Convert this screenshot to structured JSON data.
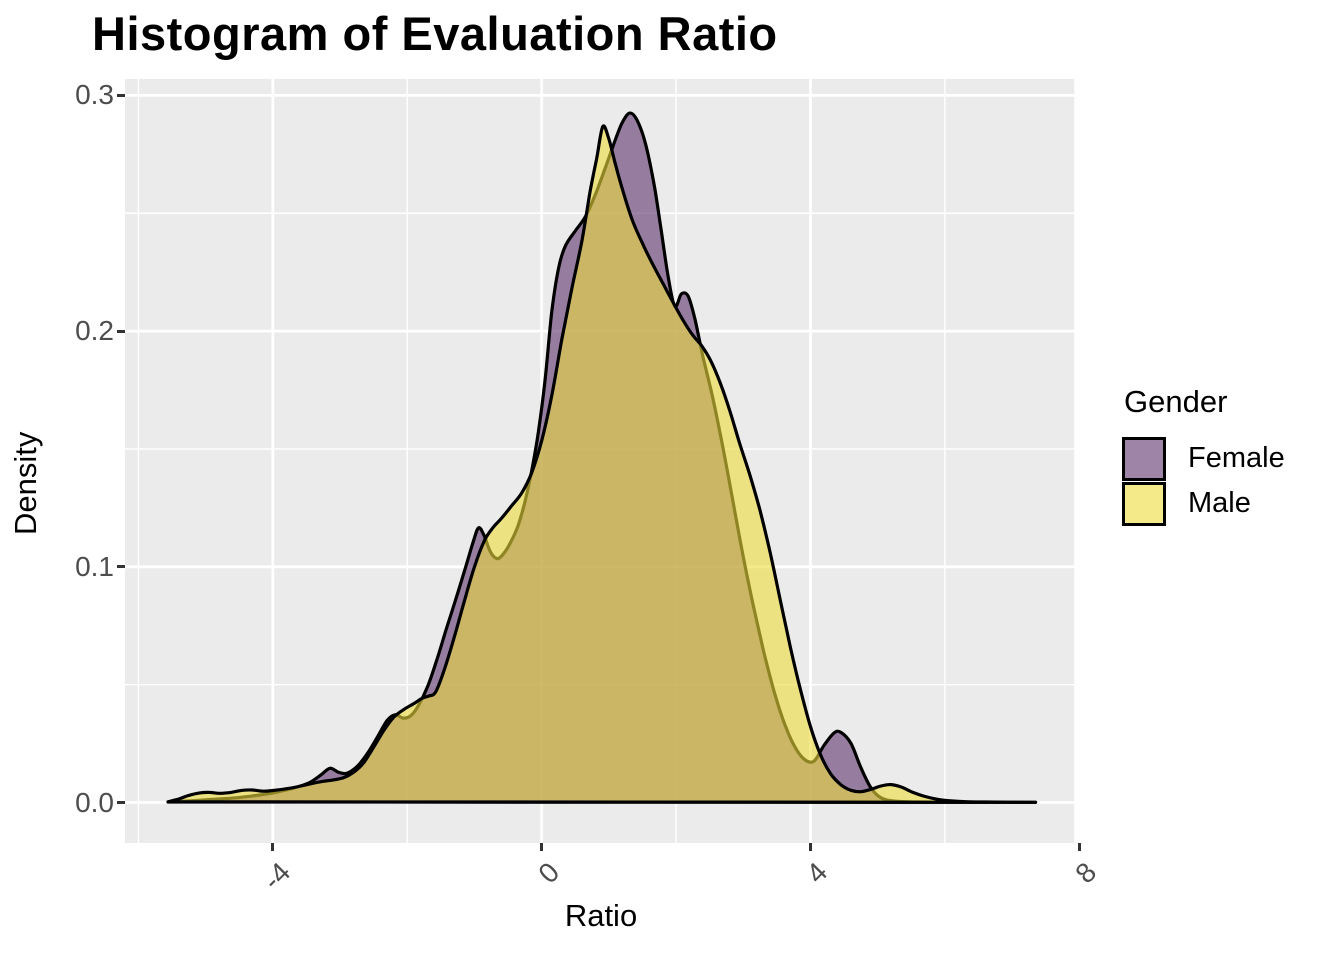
{
  "title": "Histogram of Evaluation Ratio",
  "x_axis": {
    "label": "Ratio",
    "ticks": [
      "-4",
      "0",
      "4",
      "8"
    ]
  },
  "y_axis": {
    "label": "Density",
    "ticks": [
      "0.0",
      "0.1",
      "0.2",
      "0.3"
    ]
  },
  "legend": {
    "title": "Gender",
    "entries": [
      {
        "label": "Female",
        "color": "#5D346E"
      },
      {
        "label": "Male",
        "color": "#ECDC3C"
      }
    ]
  },
  "chart_data": {
    "type": "area",
    "subtype": "overlaid-density-curves",
    "title": "Histogram of Evaluation Ratio",
    "xlabel": "Ratio",
    "ylabel": "Density",
    "x_ticks": [
      -4,
      0,
      4,
      8
    ],
    "y_ticks": [
      0.0,
      0.1,
      0.2,
      0.3
    ],
    "x_minor_ticks": [
      -6,
      -2,
      2,
      6
    ],
    "y_minor_ticks": [
      0.05,
      0.15,
      0.25
    ],
    "xlim": [
      -6.2,
      7.966
    ],
    "ylim": [
      -0.01718,
      0.30696
    ],
    "grid": true,
    "legend_position": "right",
    "panel_bg": "#EBEBEB",
    "grid_color": "#FFFFFF",
    "outline_color": "#000000",
    "outline_width": 3.2,
    "fill_alpha": 0.6,
    "series": [
      {
        "name": "Female",
        "color": "#5D346E",
        "points": [
          [
            -5.56,
            0.0002
          ],
          [
            -5.3,
            0.0006
          ],
          [
            -5.05,
            0.001
          ],
          [
            -4.8,
            0.0015
          ],
          [
            -4.55,
            0.002
          ],
          [
            -4.3,
            0.0028
          ],
          [
            -4.05,
            0.0038
          ],
          [
            -3.85,
            0.005
          ],
          [
            -3.65,
            0.0065
          ],
          [
            -3.45,
            0.0085
          ],
          [
            -3.28,
            0.0118
          ],
          [
            -3.15,
            0.0145
          ],
          [
            -3.02,
            0.0128
          ],
          [
            -2.9,
            0.0124
          ],
          [
            -2.75,
            0.0152
          ],
          [
            -2.6,
            0.0205
          ],
          [
            -2.45,
            0.0275
          ],
          [
            -2.3,
            0.0348
          ],
          [
            -2.18,
            0.0372
          ],
          [
            -2.06,
            0.0358
          ],
          [
            -1.95,
            0.0368
          ],
          [
            -1.84,
            0.0408
          ],
          [
            -1.7,
            0.049
          ],
          [
            -1.56,
            0.0605
          ],
          [
            -1.42,
            0.0735
          ],
          [
            -1.28,
            0.086
          ],
          [
            -1.14,
            0.099
          ],
          [
            -1.02,
            0.1105
          ],
          [
            -0.94,
            0.1165
          ],
          [
            -0.86,
            0.1135
          ],
          [
            -0.76,
            0.1062
          ],
          [
            -0.66,
            0.1035
          ],
          [
            -0.56,
            0.1058
          ],
          [
            -0.46,
            0.1105
          ],
          [
            -0.35,
            0.1175
          ],
          [
            -0.25,
            0.1275
          ],
          [
            -0.15,
            0.1405
          ],
          [
            -0.05,
            0.157
          ],
          [
            0.05,
            0.179
          ],
          [
            0.15,
            0.208
          ],
          [
            0.25,
            0.2265
          ],
          [
            0.35,
            0.236
          ],
          [
            0.5,
            0.2425
          ],
          [
            0.65,
            0.2485
          ],
          [
            0.8,
            0.258
          ],
          [
            0.95,
            0.2695
          ],
          [
            1.1,
            0.2815
          ],
          [
            1.2,
            0.2885
          ],
          [
            1.31,
            0.2925
          ],
          [
            1.42,
            0.2895
          ],
          [
            1.55,
            0.279
          ],
          [
            1.68,
            0.261
          ],
          [
            1.78,
            0.2425
          ],
          [
            1.88,
            0.2235
          ],
          [
            1.98,
            0.2105
          ],
          [
            2.08,
            0.2158
          ],
          [
            2.18,
            0.2148
          ],
          [
            2.28,
            0.2052
          ],
          [
            2.4,
            0.1892
          ],
          [
            2.55,
            0.1712
          ],
          [
            2.7,
            0.1502
          ],
          [
            2.85,
            0.1272
          ],
          [
            3.0,
            0.1042
          ],
          [
            3.15,
            0.0835
          ],
          [
            3.3,
            0.0645
          ],
          [
            3.45,
            0.048
          ],
          [
            3.6,
            0.0345
          ],
          [
            3.75,
            0.0245
          ],
          [
            3.9,
            0.0185
          ],
          [
            4.05,
            0.0175
          ],
          [
            4.2,
            0.0242
          ],
          [
            4.35,
            0.0295
          ],
          [
            4.45,
            0.0298
          ],
          [
            4.6,
            0.0252
          ],
          [
            4.75,
            0.0148
          ],
          [
            4.9,
            0.0062
          ],
          [
            5.05,
            0.002
          ],
          [
            5.25,
            0.0006
          ],
          [
            5.6,
            0.0002
          ],
          [
            6.2,
            0.0001
          ],
          [
            7.35,
            0.0001
          ]
        ]
      },
      {
        "name": "Male",
        "color": "#ECDC3C",
        "points": [
          [
            -5.56,
            0.0003
          ],
          [
            -5.4,
            0.0015
          ],
          [
            -5.25,
            0.003
          ],
          [
            -5.1,
            0.004
          ],
          [
            -4.95,
            0.0043
          ],
          [
            -4.8,
            0.0039
          ],
          [
            -4.62,
            0.0043
          ],
          [
            -4.45,
            0.0052
          ],
          [
            -4.3,
            0.0053
          ],
          [
            -4.15,
            0.0048
          ],
          [
            -4.0,
            0.0051
          ],
          [
            -3.85,
            0.0056
          ],
          [
            -3.7,
            0.0063
          ],
          [
            -3.55,
            0.0072
          ],
          [
            -3.4,
            0.0082
          ],
          [
            -3.25,
            0.009
          ],
          [
            -3.1,
            0.0096
          ],
          [
            -2.95,
            0.0105
          ],
          [
            -2.8,
            0.0128
          ],
          [
            -2.65,
            0.0168
          ],
          [
            -2.5,
            0.0235
          ],
          [
            -2.35,
            0.0305
          ],
          [
            -2.2,
            0.0362
          ],
          [
            -2.05,
            0.0395
          ],
          [
            -1.9,
            0.042
          ],
          [
            -1.78,
            0.0442
          ],
          [
            -1.68,
            0.0452
          ],
          [
            -1.58,
            0.0468
          ],
          [
            -1.45,
            0.0562
          ],
          [
            -1.3,
            0.0702
          ],
          [
            -1.15,
            0.0855
          ],
          [
            -1.0,
            0.1
          ],
          [
            -0.85,
            0.1112
          ],
          [
            -0.72,
            0.1168
          ],
          [
            -0.6,
            0.1205
          ],
          [
            -0.45,
            0.1258
          ],
          [
            -0.3,
            0.1312
          ],
          [
            -0.15,
            0.1398
          ],
          [
            0.0,
            0.1535
          ],
          [
            0.15,
            0.1725
          ],
          [
            0.3,
            0.1965
          ],
          [
            0.45,
            0.2182
          ],
          [
            0.6,
            0.2385
          ],
          [
            0.72,
            0.259
          ],
          [
            0.82,
            0.2735
          ],
          [
            0.91,
            0.2868
          ],
          [
            1.0,
            0.2815
          ],
          [
            1.1,
            0.2705
          ],
          [
            1.22,
            0.2585
          ],
          [
            1.35,
            0.247
          ],
          [
            1.5,
            0.2372
          ],
          [
            1.65,
            0.2285
          ],
          [
            1.8,
            0.2205
          ],
          [
            1.95,
            0.2125
          ],
          [
            2.1,
            0.2048
          ],
          [
            2.25,
            0.1982
          ],
          [
            2.38,
            0.1938
          ],
          [
            2.52,
            0.1872
          ],
          [
            2.66,
            0.1778
          ],
          [
            2.8,
            0.1662
          ],
          [
            2.95,
            0.152
          ],
          [
            3.1,
            0.1388
          ],
          [
            3.25,
            0.1238
          ],
          [
            3.4,
            0.106
          ],
          [
            3.55,
            0.086
          ],
          [
            3.7,
            0.066
          ],
          [
            3.85,
            0.048
          ],
          [
            4.0,
            0.0322
          ],
          [
            4.15,
            0.0202
          ],
          [
            4.3,
            0.0122
          ],
          [
            4.45,
            0.0076
          ],
          [
            4.6,
            0.0052
          ],
          [
            4.75,
            0.0046
          ],
          [
            4.9,
            0.0056
          ],
          [
            5.05,
            0.007
          ],
          [
            5.2,
            0.0076
          ],
          [
            5.35,
            0.0066
          ],
          [
            5.5,
            0.0046
          ],
          [
            5.7,
            0.0026
          ],
          [
            5.9,
            0.0013
          ],
          [
            6.2,
            0.0005
          ],
          [
            6.6,
            0.0002
          ],
          [
            7.35,
            0.0001
          ]
        ]
      }
    ]
  }
}
